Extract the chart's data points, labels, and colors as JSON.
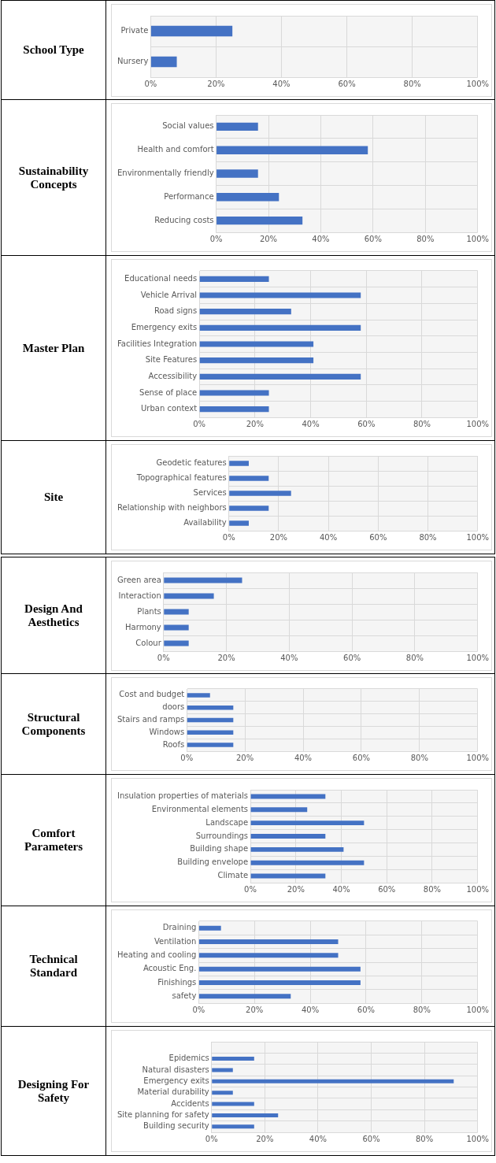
{
  "chart_data": [
    {
      "type": "bar",
      "title": "School Type",
      "orientation": "horizontal",
      "categories": [
        "Private",
        "Nursery"
      ],
      "values": [
        25,
        8
      ],
      "color": "#4472c4",
      "xlim": [
        0,
        100
      ],
      "xticks": [
        {
          "value": 0,
          "label": "0%"
        },
        {
          "value": 20,
          "label": "20%"
        },
        {
          "value": 40,
          "label": "40%"
        },
        {
          "value": 60,
          "label": "60%"
        },
        {
          "value": 80,
          "label": "80%"
        },
        {
          "value": 100,
          "label": "100%"
        }
      ],
      "grid": true
    },
    {
      "type": "bar",
      "title": "Sustainability Concepts",
      "orientation": "horizontal",
      "categories": [
        "Social values",
        "Health and comfort",
        "Environmentally friendly",
        "Performance",
        "Reducing costs"
      ],
      "values": [
        16,
        58,
        16,
        24,
        33
      ],
      "color": "#4472c4",
      "xlim": [
        0,
        100
      ],
      "xticks": [
        {
          "value": 0,
          "label": "0%"
        },
        {
          "value": 20,
          "label": "20%"
        },
        {
          "value": 40,
          "label": "40%"
        },
        {
          "value": 60,
          "label": "60%"
        },
        {
          "value": 80,
          "label": "80%"
        },
        {
          "value": 100,
          "label": "100%"
        }
      ],
      "grid": true
    },
    {
      "type": "bar",
      "title": "Master Plan",
      "orientation": "horizontal",
      "categories": [
        "Educational needs",
        "Vehicle Arrival",
        "Road signs",
        "Emergency exits",
        "Facilities Integration",
        "Site Features",
        "Accessibility",
        "Sense of place",
        "Urban context"
      ],
      "values": [
        25,
        58,
        33,
        58,
        41,
        41,
        58,
        25,
        25
      ],
      "color": "#4472c4",
      "xlim": [
        0,
        100
      ],
      "xticks": [
        {
          "value": 0,
          "label": "0%"
        },
        {
          "value": 20,
          "label": "20%"
        },
        {
          "value": 40,
          "label": "40%"
        },
        {
          "value": 60,
          "label": "60%"
        },
        {
          "value": 80,
          "label": "80%"
        },
        {
          "value": 100,
          "label": "100%"
        }
      ],
      "grid": true
    },
    {
      "type": "bar",
      "title": "Site",
      "orientation": "horizontal",
      "categories": [
        "Geodetic features",
        "Topographical features",
        "Services",
        "Relationship with neighbors",
        "Availability"
      ],
      "values": [
        8,
        16,
        25,
        16,
        8
      ],
      "color": "#4472c4",
      "xlim": [
        0,
        100
      ],
      "xticks": [
        {
          "value": 0,
          "label": "0%"
        },
        {
          "value": 20,
          "label": "20%"
        },
        {
          "value": 40,
          "label": "40%"
        },
        {
          "value": 60,
          "label": "60%"
        },
        {
          "value": 80,
          "label": "80%"
        },
        {
          "value": 100,
          "label": "100%"
        }
      ],
      "grid": true
    },
    {
      "type": "bar",
      "title": "Design And Aesthetics",
      "orientation": "horizontal",
      "categories": [
        "Green area",
        "Interaction",
        "Plants",
        "Harmony",
        "Colour"
      ],
      "values": [
        25,
        16,
        8,
        8,
        8
      ],
      "color": "#4472c4",
      "xlim": [
        0,
        100
      ],
      "xticks": [
        {
          "value": 0,
          "label": "0%"
        },
        {
          "value": 20,
          "label": "20%"
        },
        {
          "value": 40,
          "label": "40%"
        },
        {
          "value": 60,
          "label": "60%"
        },
        {
          "value": 80,
          "label": "80%"
        },
        {
          "value": 100,
          "label": "100%"
        }
      ],
      "grid": true
    },
    {
      "type": "bar",
      "title": "Structural Components",
      "orientation": "horizontal",
      "categories": [
        "Cost and budget",
        "doors",
        "Stairs and ramps",
        "Windows",
        "Roofs"
      ],
      "values": [
        8,
        16,
        16,
        16,
        16
      ],
      "color": "#4472c4",
      "xlim": [
        0,
        100
      ],
      "xticks": [
        {
          "value": 0,
          "label": "0%"
        },
        {
          "value": 20,
          "label": "20%"
        },
        {
          "value": 40,
          "label": "40%"
        },
        {
          "value": 60,
          "label": "60%"
        },
        {
          "value": 80,
          "label": "80%"
        },
        {
          "value": 100,
          "label": "100%"
        }
      ],
      "grid": true
    },
    {
      "type": "bar",
      "title": "Comfort Parameters",
      "orientation": "horizontal",
      "categories": [
        "Insulation properties of materials",
        "Environmental elements",
        "Landscape",
        "Surroundings",
        "Building shape",
        "Building envelope",
        "Climate"
      ],
      "values": [
        33,
        25,
        50,
        33,
        41,
        50,
        33
      ],
      "color": "#4472c4",
      "xlim": [
        0,
        100
      ],
      "xticks": [
        {
          "value": 0,
          "label": "0%"
        },
        {
          "value": 20,
          "label": "20%"
        },
        {
          "value": 40,
          "label": "40%"
        },
        {
          "value": 60,
          "label": "60%"
        },
        {
          "value": 80,
          "label": "80%"
        },
        {
          "value": 100,
          "label": "100%"
        }
      ],
      "grid": true
    },
    {
      "type": "bar",
      "title": "Technical Standard",
      "orientation": "horizontal",
      "categories": [
        "Draining",
        "Ventilation",
        "Heating and cooling",
        "Acoustic Eng.",
        "Finishings",
        "safety"
      ],
      "values": [
        8,
        50,
        50,
        58,
        58,
        33
      ],
      "color": "#4472c4",
      "xlim": [
        0,
        100
      ],
      "xticks": [
        {
          "value": 0,
          "label": "0%"
        },
        {
          "value": 20,
          "label": "20%"
        },
        {
          "value": 40,
          "label": "40%"
        },
        {
          "value": 60,
          "label": "60%"
        },
        {
          "value": 80,
          "label": "80%"
        },
        {
          "value": 100,
          "label": "100%"
        }
      ],
      "grid": true
    },
    {
      "type": "bar",
      "title": "Designing For Safety",
      "orientation": "horizontal",
      "categories": [
        null,
        "Epidemics",
        "Natural disasters",
        "Emergency exits",
        "Material durability",
        "Accidents",
        "Site planning for safety",
        "Building security"
      ],
      "values": [
        null,
        16,
        8,
        91,
        8,
        16,
        25,
        16
      ],
      "color": "#4472c4",
      "xlim": [
        0,
        100
      ],
      "xticks": [
        {
          "value": 0,
          "label": "0%"
        },
        {
          "value": 20,
          "label": "20%"
        },
        {
          "value": 40,
          "label": "40%"
        },
        {
          "value": 60,
          "label": "60%"
        },
        {
          "value": 80,
          "label": "80%"
        },
        {
          "value": 100,
          "label": "100%"
        }
      ],
      "grid": true
    }
  ]
}
